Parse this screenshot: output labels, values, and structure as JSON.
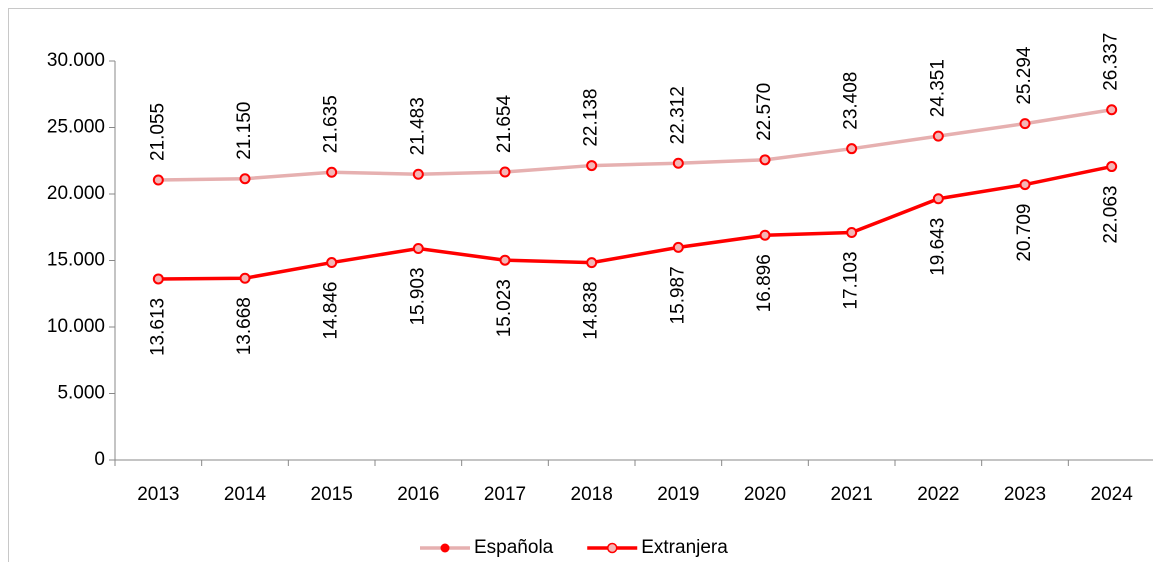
{
  "chart_data": {
    "type": "line",
    "categories": [
      "2013",
      "2014",
      "2015",
      "2016",
      "2017",
      "2018",
      "2019",
      "2020",
      "2021",
      "2022",
      "2023",
      "2024"
    ],
    "series": [
      {
        "name": "Española",
        "color": "#e6b0b0",
        "marker_color": "#ff0000",
        "values": [
          21055,
          21150,
          21635,
          21483,
          21654,
          22138,
          22312,
          22570,
          23408,
          24351,
          25294,
          26337
        ],
        "value_labels": [
          "21.055",
          "21.150",
          "21.635",
          "21.483",
          "21.654",
          "22.138",
          "22.312",
          "22.570",
          "23.408",
          "24.351",
          "25.294",
          "26.337"
        ]
      },
      {
        "name": "Extranjera",
        "color": "#ff0000",
        "marker_color": "#f4b6b6",
        "values": [
          13613,
          13668,
          14846,
          15903,
          15023,
          14838,
          15987,
          16896,
          17103,
          19643,
          20709,
          22063
        ],
        "value_labels": [
          "13.613",
          "13.668",
          "14.846",
          "15.903",
          "15.023",
          "14.838",
          "15.987",
          "16.896",
          "17.103",
          "19.643",
          "20.709",
          "22.063"
        ]
      }
    ],
    "ylim": [
      0,
      30000
    ],
    "yticks": [
      0,
      {
        "value": 5000,
        "label": "5.000"
      },
      {
        "value": 10000,
        "label": "10.000"
      },
      {
        "value": 15000,
        "label": "15.000"
      },
      {
        "value": 20000,
        "label": "20.000"
      },
      {
        "value": 25000,
        "label": "25.000"
      },
      {
        "value": 30000,
        "label": "30.000"
      }
    ],
    "legend": "bottom"
  }
}
